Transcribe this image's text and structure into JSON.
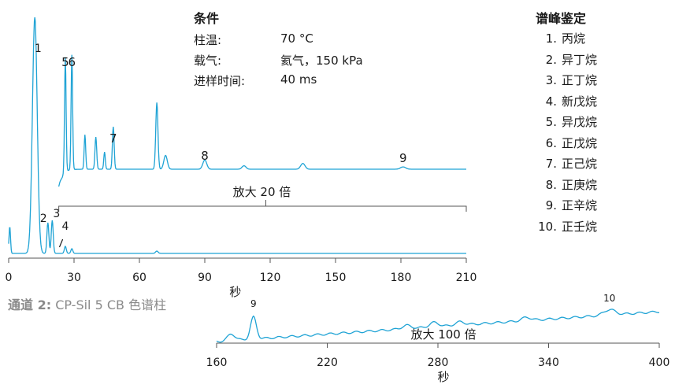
{
  "conditions": {
    "title": "条件",
    "rows": [
      {
        "label": "柱温:",
        "value": "70 °C"
      },
      {
        "label": "载气:",
        "value": "氦气，150 kPa"
      },
      {
        "label": "进样时间:",
        "value": "40 ms"
      }
    ]
  },
  "peaks": {
    "title": "谱峰鉴定",
    "items": [
      {
        "num": "1.",
        "name": "丙烷"
      },
      {
        "num": "2.",
        "name": "异丁烷"
      },
      {
        "num": "3.",
        "name": "正丁烷"
      },
      {
        "num": "4.",
        "name": "新戊烷"
      },
      {
        "num": "5.",
        "name": "异戊烷"
      },
      {
        "num": "6.",
        "name": "正戊烷"
      },
      {
        "num": "7.",
        "name": "正己烷"
      },
      {
        "num": "8.",
        "name": "正庚烷"
      },
      {
        "num": "9.",
        "name": "正辛烷"
      },
      {
        "num": "10.",
        "name": "正壬烷"
      }
    ]
  },
  "channel": {
    "prefix": "通道 2:",
    "column": "CP-Sil 5 CB 色谱柱"
  },
  "colors": {
    "trace": "#1fa3d5",
    "axis": "#555555",
    "text": "#1a1a1a"
  },
  "chart_data": [
    {
      "type": "line",
      "xlabel": "秒",
      "xlim": [
        0,
        210
      ],
      "x_ticks": [
        0,
        30,
        60,
        90,
        120,
        150,
        180,
        210
      ],
      "baseline_trace": {
        "peaks": [
          {
            "label": "1",
            "x": 12,
            "rel_height": 1.0
          },
          {
            "label": "2",
            "x": 18,
            "rel_height": 0.13
          },
          {
            "label": "3",
            "x": 20,
            "rel_height": 0.14
          },
          {
            "label": "4",
            "x": 26,
            "rel_height": 0.03
          },
          {
            "label": "",
            "x": 29,
            "rel_height": 0.02
          },
          {
            "label": "",
            "x": 68,
            "rel_height": 0.01
          }
        ]
      },
      "magnified_trace": {
        "annotation": "放大 20 倍",
        "range": [
          23,
          210
        ],
        "peaks": [
          {
            "label": "5",
            "x": 26,
            "rel_height": 1.0
          },
          {
            "label": "6",
            "x": 29,
            "rel_height": 1.0
          },
          {
            "label": "",
            "x": 35,
            "rel_height": 0.3
          },
          {
            "label": "",
            "x": 40,
            "rel_height": 0.28
          },
          {
            "label": "",
            "x": 44,
            "rel_height": 0.15
          },
          {
            "label": "7",
            "x": 48,
            "rel_height": 0.37
          },
          {
            "label": "",
            "x": 68,
            "rel_height": 0.58
          },
          {
            "label": "",
            "x": 72,
            "rel_height": 0.12
          },
          {
            "label": "8",
            "x": 90,
            "rel_height": 0.08
          },
          {
            "label": "",
            "x": 108,
            "rel_height": 0.03
          },
          {
            "label": "",
            "x": 135,
            "rel_height": 0.05
          },
          {
            "label": "9",
            "x": 181,
            "rel_height": 0.02
          }
        ]
      }
    },
    {
      "type": "line",
      "xlabel": "秒",
      "annotation": "放大 100 倍",
      "xlim": [
        160,
        400
      ],
      "x_ticks": [
        160,
        220,
        280,
        340,
        400
      ],
      "peaks": [
        {
          "label": "",
          "x": 168,
          "rel_height": 0.3
        },
        {
          "label": "9",
          "x": 180,
          "rel_height": 1.0
        },
        {
          "label": "",
          "x": 263,
          "rel_height": 0.15
        },
        {
          "label": "",
          "x": 278,
          "rel_height": 0.2
        },
        {
          "label": "",
          "x": 292,
          "rel_height": 0.15
        },
        {
          "label": "",
          "x": 328,
          "rel_height": 0.15
        },
        {
          "label": "10",
          "x": 373,
          "rel_height": 0.25
        }
      ]
    }
  ]
}
